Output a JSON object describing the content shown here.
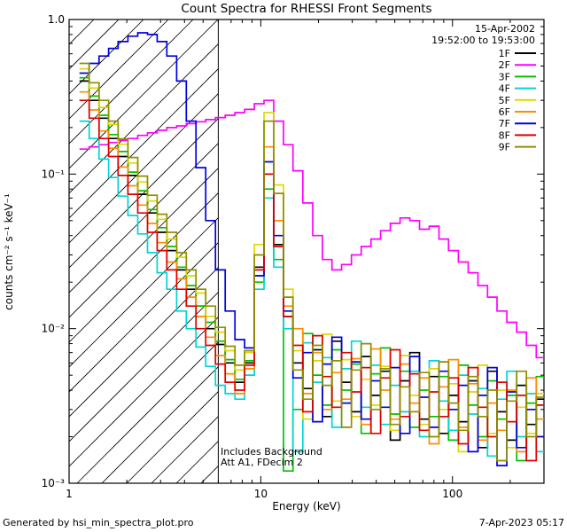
{
  "chart_data": {
    "type": "line",
    "title": "Count Spectra for RHESSI Front Segments",
    "xlabel": "Energy (keV)",
    "ylabel": "counts cm⁻² s⁻¹ keV⁻¹",
    "xscale": "log",
    "yscale": "log",
    "xlim": [
      1,
      300
    ],
    "ylim": [
      0.001,
      1
    ],
    "grid": false,
    "legend_position": "top-right",
    "header": {
      "date": "15-Apr-2002",
      "time_range": "19:52:00 to 19:53:00",
      "time_color": "#0000cc"
    },
    "annotations": {
      "line1": "Includes Background",
      "line2": "Att A1, FDecim 2"
    },
    "attenuator_line_kev": 6,
    "hatch_region_kev": [
      1,
      6
    ],
    "x_major_ticks": [
      {
        "value": 1,
        "label": "1"
      },
      {
        "value": 10,
        "label": "10"
      },
      {
        "value": 100,
        "label": "100"
      }
    ],
    "x_minor_ticks": [
      2,
      3,
      4,
      5,
      6,
      7,
      8,
      9,
      20,
      30,
      40,
      50,
      60,
      70,
      80,
      90,
      200,
      300
    ],
    "y_major_ticks": [
      {
        "value": 1,
        "label": "1.0"
      },
      {
        "value": 0.1,
        "label": "10⁻¹"
      },
      {
        "value": 0.01,
        "label": "10⁻²"
      },
      {
        "value": 0.001,
        "label": "10⁻³"
      }
    ],
    "y_minor_ticks": [
      0.002,
      0.003,
      0.004,
      0.005,
      0.006,
      0.007,
      0.008,
      0.009,
      0.02,
      0.03,
      0.04,
      0.05,
      0.06,
      0.07,
      0.08,
      0.09,
      0.2,
      0.3,
      0.4,
      0.5,
      0.6,
      0.7,
      0.8,
      0.9
    ],
    "x": [
      1.2,
      1.35,
      1.52,
      1.7,
      1.91,
      2.15,
      2.42,
      2.72,
      3.05,
      3.43,
      3.86,
      4.33,
      4.87,
      5.47,
      6.15,
      6.91,
      7.77,
      8.73,
      9.81,
      11.0,
      12.4,
      13.9,
      15.6,
      17.6,
      19.8,
      22.2,
      24.9,
      28.0,
      31.5,
      35.4,
      39.8,
      44.7,
      50.3,
      56.5,
      63.5,
      71.3,
      80.2,
      90.1,
      101,
      114,
      128,
      144,
      161,
      181,
      204,
      229,
      258,
      290
    ],
    "series": [
      {
        "name": "1F",
        "color": "#000000",
        "values": [
          0.4,
          0.3,
          0.23,
          0.17,
          0.13,
          0.098,
          0.074,
          0.056,
          0.042,
          0.032,
          0.024,
          0.018,
          0.014,
          0.01,
          0.0079,
          0.006,
          0.0045,
          0.006,
          0.025,
          0.1,
          0.035,
          0.012,
          0.006,
          0.0041,
          0.0073,
          0.0027,
          0.0083,
          0.0045,
          0.0029,
          0.0066,
          0.0037,
          0.0053,
          0.0019,
          0.0046,
          0.007,
          0.0026,
          0.0049,
          0.0021,
          0.0037,
          0.0025,
          0.0046,
          0.0017,
          0.0053,
          0.0029,
          0.0019,
          0.0043,
          0.0024,
          0.0035
        ]
      },
      {
        "name": "2F",
        "color": "#ff00ff",
        "values": [
          0.145,
          0.15,
          0.155,
          0.16,
          0.165,
          0.17,
          0.178,
          0.185,
          0.192,
          0.2,
          0.205,
          0.212,
          0.218,
          0.225,
          0.232,
          0.24,
          0.25,
          0.262,
          0.285,
          0.3,
          0.22,
          0.155,
          0.105,
          0.065,
          0.04,
          0.028,
          0.024,
          0.026,
          0.03,
          0.034,
          0.038,
          0.043,
          0.048,
          0.052,
          0.05,
          0.044,
          0.046,
          0.038,
          0.032,
          0.027,
          0.023,
          0.019,
          0.016,
          0.013,
          0.011,
          0.0095,
          0.0078,
          0.0065
        ]
      },
      {
        "name": "3F",
        "color": "#00c000",
        "values": [
          0.42,
          0.32,
          0.24,
          0.18,
          0.14,
          0.103,
          0.078,
          0.059,
          0.045,
          0.034,
          0.025,
          0.019,
          0.014,
          0.011,
          0.0083,
          0.0063,
          0.0047,
          0.0062,
          0.02,
          0.08,
          0.028,
          0.0012,
          0.003,
          0.0093,
          0.005,
          0.0032,
          0.0073,
          0.004,
          0.0059,
          0.0021,
          0.0051,
          0.0075,
          0.0028,
          0.0053,
          0.0023,
          0.004,
          0.0027,
          0.0049,
          0.0019,
          0.0058,
          0.0032,
          0.002,
          0.0046,
          0.0026,
          0.0037,
          0.0014,
          0.0033,
          0.0049
        ]
      },
      {
        "name": "4F",
        "color": "#00d5d5",
        "values": [
          0.22,
          0.17,
          0.125,
          0.095,
          0.072,
          0.054,
          0.041,
          0.031,
          0.023,
          0.018,
          0.013,
          0.01,
          0.0076,
          0.0057,
          0.0043,
          0.0038,
          0.0035,
          0.005,
          0.018,
          0.07,
          0.025,
          0.01,
          0.0016,
          0.0081,
          0.0045,
          0.0065,
          0.0023,
          0.0055,
          0.0083,
          0.0031,
          0.0058,
          0.0024,
          0.0043,
          0.0029,
          0.0053,
          0.002,
          0.0062,
          0.0034,
          0.0022,
          0.005,
          0.0028,
          0.0041,
          0.0015,
          0.0035,
          0.0053,
          0.002,
          0.0038,
          0.0016
        ]
      },
      {
        "name": "5F",
        "color": "#e0d800",
        "values": [
          0.48,
          0.36,
          0.27,
          0.21,
          0.156,
          0.118,
          0.089,
          0.067,
          0.051,
          0.038,
          0.029,
          0.022,
          0.017,
          0.012,
          0.0095,
          0.0072,
          0.0054,
          0.007,
          0.035,
          0.25,
          0.085,
          0.018,
          0.0072,
          0.0026,
          0.0062,
          0.0092,
          0.0034,
          0.0063,
          0.0027,
          0.0047,
          0.0032,
          0.0057,
          0.0022,
          0.0067,
          0.0037,
          0.0024,
          0.0055,
          0.003,
          0.0044,
          0.0016,
          0.0039,
          0.0058,
          0.0021,
          0.004,
          0.0017,
          0.0031,
          0.0021,
          0.0038
        ]
      },
      {
        "name": "6F",
        "color": "#ff8c00",
        "values": [
          0.34,
          0.26,
          0.19,
          0.147,
          0.111,
          0.084,
          0.063,
          0.048,
          0.036,
          0.027,
          0.021,
          0.016,
          0.012,
          0.0088,
          0.0067,
          0.0051,
          0.0038,
          0.0055,
          0.022,
          0.15,
          0.05,
          0.014,
          0.01,
          0.0038,
          0.007,
          0.003,
          0.0052,
          0.0035,
          0.0064,
          0.0024,
          0.0074,
          0.004,
          0.0026,
          0.0059,
          0.0033,
          0.0048,
          0.0018,
          0.0042,
          0.0063,
          0.0023,
          0.0044,
          0.0019,
          0.0033,
          0.0022,
          0.004,
          0.0016,
          0.0048,
          0.0026
        ]
      },
      {
        "name": "7F",
        "color": "#0000e0",
        "values": [
          0.45,
          0.52,
          0.58,
          0.65,
          0.72,
          0.78,
          0.82,
          0.8,
          0.72,
          0.58,
          0.4,
          0.22,
          0.11,
          0.05,
          0.024,
          0.013,
          0.0085,
          0.0075,
          0.022,
          0.12,
          0.04,
          0.013,
          0.0048,
          0.007,
          0.0025,
          0.0059,
          0.0088,
          0.0033,
          0.0061,
          0.0026,
          0.0046,
          0.0031,
          0.0056,
          0.0021,
          0.0066,
          0.0036,
          0.0023,
          0.0053,
          0.003,
          0.0043,
          0.0016,
          0.0037,
          0.0056,
          0.0013,
          0.0039,
          0.0017,
          0.003,
          0.002
        ]
      },
      {
        "name": "8F",
        "color": "#dd0000",
        "values": [
          0.3,
          0.23,
          0.17,
          0.13,
          0.098,
          0.074,
          0.056,
          0.042,
          0.032,
          0.024,
          0.018,
          0.014,
          0.01,
          0.0078,
          0.0059,
          0.0045,
          0.004,
          0.0058,
          0.024,
          0.1,
          0.034,
          0.012,
          0.0078,
          0.0029,
          0.009,
          0.0049,
          0.0031,
          0.007,
          0.0039,
          0.0056,
          0.0021,
          0.0048,
          0.0073,
          0.0027,
          0.0051,
          0.0022,
          0.0039,
          0.0027,
          0.0048,
          0.0018,
          0.0056,
          0.0031,
          0.002,
          0.0045,
          0.0025,
          0.0037,
          0.0014,
          0.0032
        ]
      },
      {
        "name": "9F",
        "color": "#8f8f00",
        "values": [
          0.52,
          0.39,
          0.3,
          0.22,
          0.169,
          0.128,
          0.097,
          0.073,
          0.055,
          0.042,
          0.031,
          0.024,
          0.018,
          0.014,
          0.0102,
          0.0077,
          0.0058,
          0.0072,
          0.03,
          0.22,
          0.075,
          0.016,
          0.0054,
          0.0035,
          0.0078,
          0.0043,
          0.0062,
          0.0023,
          0.0054,
          0.008,
          0.003,
          0.0055,
          0.0024,
          0.0042,
          0.0029,
          0.0052,
          0.002,
          0.0061,
          0.0033,
          0.0022,
          0.0049,
          0.0027,
          0.004,
          0.0014,
          0.0034,
          0.0053,
          0.002,
          0.0036
        ]
      }
    ],
    "footer": {
      "left": "Generated by hsi_min_spectra_plot.pro",
      "right": "7-Apr-2023 05:17"
    }
  }
}
